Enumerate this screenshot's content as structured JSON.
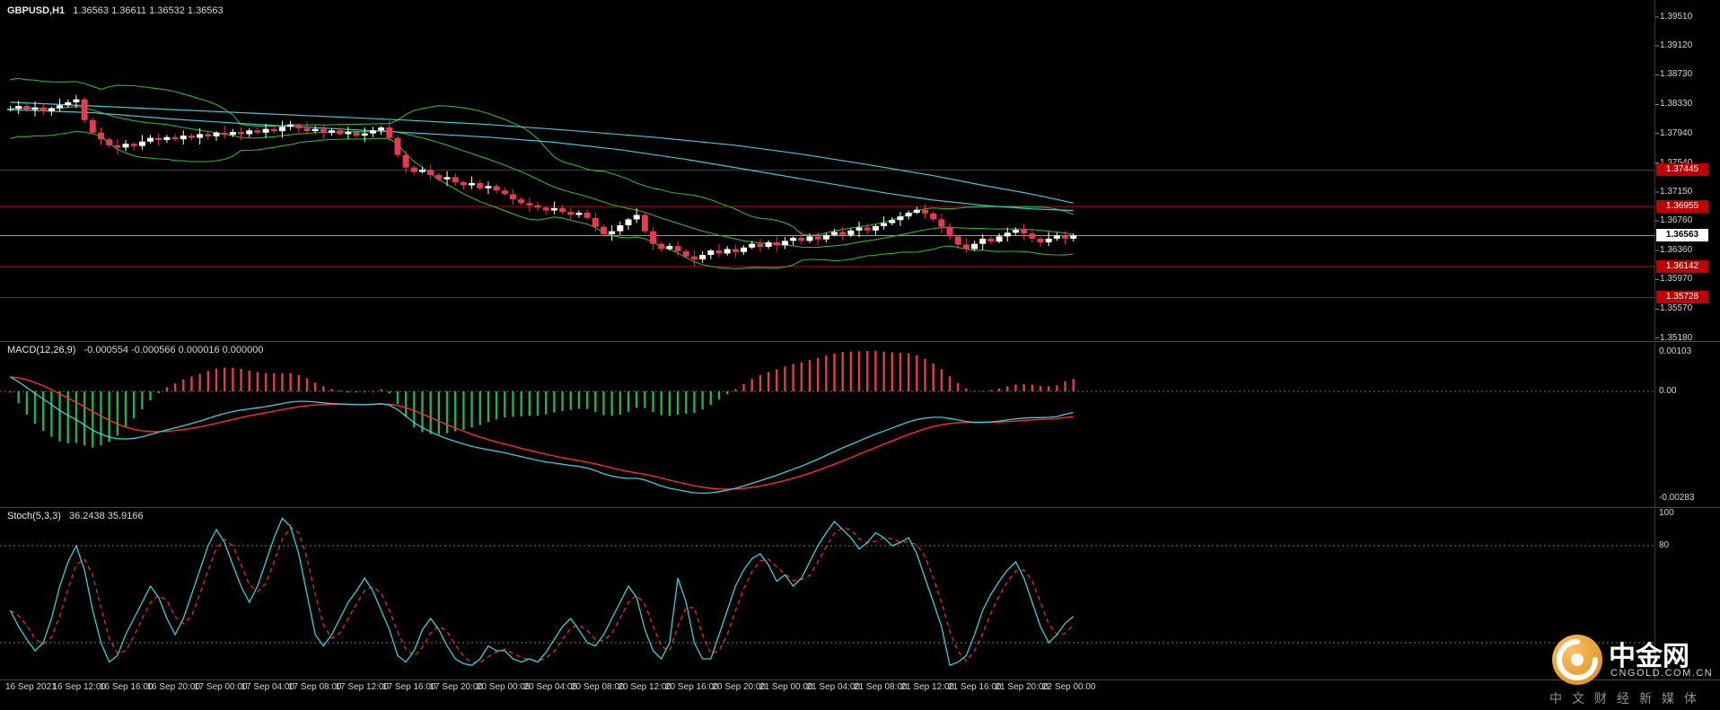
{
  "chart_data": {
    "type": "candlestick+indicators",
    "symbol": "GBPUSD",
    "timeframe": "H1",
    "header": {
      "symbol_period": "GBPUSD,H1",
      "ohlc": "1.36563 1.36611 1.36532 1.36563"
    },
    "price_axis": {
      "max": 1.3951,
      "min": 1.3518,
      "ticks": [
        "1.39510",
        "1.39120",
        "1.38730",
        "1.38330",
        "1.37940",
        "1.37540",
        "1.37150",
        "1.36760",
        "1.36360",
        "1.35970",
        "1.35570",
        "1.35180"
      ]
    },
    "time_axis": [
      "16 Sep 2021",
      "16 Sep 12:00",
      "16 Sep 16:00",
      "16 Sep 20:00",
      "17 Sep 00:00",
      "17 Sep 04:00",
      "17 Sep 08:00",
      "17 Sep 12:00",
      "17 Sep 16:00",
      "17 Sep 20:00",
      "20 Sep 00:05",
      "20 Sep 04:05",
      "20 Sep 08:00",
      "20 Sep 12:00",
      "20 Sep 16:00",
      "20 Sep 20:00",
      "21 Sep 00:00",
      "21 Sep 04:00",
      "21 Sep 08:00",
      "21 Sep 12:00",
      "21 Sep 16:00",
      "21 Sep 20:00",
      "22 Sep 00:00"
    ],
    "hlines": [
      {
        "price": 1.37445,
        "label": "1.37445"
      },
      {
        "price": 1.36955,
        "label": "1.36955"
      },
      {
        "price": 1.36142,
        "label": "1.36142"
      },
      {
        "price": 1.35728,
        "label": "1.35728"
      }
    ],
    "current_price": {
      "price": 1.36563,
      "label": "1.36563"
    },
    "candles": {
      "first_open": 1.38255,
      "closes": [
        1.3827,
        1.3831,
        1.3826,
        1.3829,
        1.3824,
        1.3828,
        1.3832,
        1.3836,
        1.384,
        1.3812,
        1.3795,
        1.3786,
        1.3778,
        1.3775,
        1.378,
        1.3777,
        1.3783,
        1.3788,
        1.3785,
        1.3789,
        1.3786,
        1.3791,
        1.3788,
        1.3793,
        1.379,
        1.3795,
        1.3792,
        1.3796,
        1.3793,
        1.3798,
        1.3795,
        1.38,
        1.3797,
        1.3803,
        1.3806,
        1.3801,
        1.3797,
        1.38,
        1.3795,
        1.3798,
        1.3793,
        1.3796,
        1.3791,
        1.3794,
        1.3798,
        1.3802,
        1.3788,
        1.3765,
        1.3748,
        1.3742,
        1.3745,
        1.3738,
        1.3732,
        1.3735,
        1.3728,
        1.3724,
        1.3727,
        1.372,
        1.3723,
        1.3717,
        1.3712,
        1.3705,
        1.37,
        1.3697,
        1.3694,
        1.369,
        1.3693,
        1.3688,
        1.3684,
        1.3687,
        1.368,
        1.3668,
        1.3658,
        1.3662,
        1.367,
        1.3678,
        1.3684,
        1.3662,
        1.3645,
        1.3638,
        1.3642,
        1.3635,
        1.3628,
        1.3624,
        1.363,
        1.3636,
        1.3632,
        1.3638,
        1.3634,
        1.364,
        1.3645,
        1.3641,
        1.3647,
        1.3643,
        1.3649,
        1.3653,
        1.3649,
        1.3655,
        1.3651,
        1.3657,
        1.3661,
        1.3657,
        1.3663,
        1.3667,
        1.3663,
        1.3669,
        1.3673,
        1.3677,
        1.3682,
        1.3687,
        1.3691,
        1.3686,
        1.3678,
        1.3668,
        1.3655,
        1.3644,
        1.3638,
        1.3645,
        1.3652,
        1.3648,
        1.3655,
        1.366,
        1.3664,
        1.3659,
        1.3652,
        1.3647,
        1.3652,
        1.3656,
        1.3652,
        1.36563
      ]
    },
    "overlays": {
      "bollinger": {
        "period": 20,
        "deviation": 2
      },
      "ma_fast": [
        [
          0,
          1.3826
        ],
        [
          10,
          1.3822
        ],
        [
          20,
          1.3813
        ],
        [
          30,
          1.3806
        ],
        [
          40,
          1.38
        ],
        [
          50,
          1.3794
        ],
        [
          58,
          1.3789
        ],
        [
          66,
          1.3782
        ],
        [
          74,
          1.3772
        ],
        [
          82,
          1.3759
        ],
        [
          90,
          1.3744
        ],
        [
          98,
          1.3729
        ],
        [
          106,
          1.3714
        ],
        [
          112,
          1.3704
        ],
        [
          118,
          1.3697
        ],
        [
          124,
          1.3692
        ],
        [
          129,
          1.369
        ]
      ],
      "ma_slow": [
        [
          0,
          1.3836
        ],
        [
          12,
          1.383
        ],
        [
          24,
          1.3824
        ],
        [
          36,
          1.3818
        ],
        [
          48,
          1.3812
        ],
        [
          58,
          1.3806
        ],
        [
          68,
          1.3798
        ],
        [
          78,
          1.3789
        ],
        [
          88,
          1.3778
        ],
        [
          96,
          1.3766
        ],
        [
          104,
          1.3752
        ],
        [
          112,
          1.3737
        ],
        [
          118,
          1.3724
        ],
        [
          124,
          1.3712
        ],
        [
          129,
          1.37
        ]
      ]
    },
    "macd": {
      "name": "MACD(12,26,9)",
      "values_text": "-0.000554 -0.000566 0.000016 0.000000",
      "axis_labels": {
        "top": "0.00103",
        "zero": "0.00",
        "bottom": "-0.00283"
      },
      "line_1e5": [
        38,
        25,
        10,
        -5,
        -20,
        -35,
        -50,
        -63,
        -74,
        -88,
        -102,
        -112,
        -120,
        -124,
        -125,
        -123,
        -119,
        -113,
        -107,
        -101,
        -96,
        -90,
        -84,
        -78,
        -71,
        -64,
        -58,
        -53,
        -49,
        -46,
        -43,
        -40,
        -36,
        -32,
        -28,
        -26,
        -26,
        -28,
        -30,
        -32,
        -33,
        -34,
        -35,
        -35,
        -34,
        -32,
        -36,
        -48,
        -65,
        -82,
        -95,
        -106,
        -116,
        -124,
        -131,
        -138,
        -144,
        -149,
        -153,
        -157,
        -161,
        -166,
        -171,
        -176,
        -181,
        -185,
        -188,
        -191,
        -194,
        -197,
        -201,
        -208,
        -216,
        -222,
        -226,
        -228,
        -228,
        -232,
        -240,
        -248,
        -254,
        -258,
        -262,
        -266,
        -267,
        -266,
        -263,
        -259,
        -254,
        -248,
        -241,
        -234,
        -227,
        -220,
        -212,
        -204,
        -196,
        -187,
        -178,
        -168,
        -158,
        -148,
        -139,
        -130,
        -121,
        -112,
        -104,
        -96,
        -88,
        -80,
        -74,
        -70,
        -68,
        -68,
        -71,
        -75,
        -79,
        -81,
        -81,
        -80,
        -78,
        -75,
        -72,
        -70,
        -69,
        -69,
        -68,
        -66,
        -60,
        -55.4
      ]
    },
    "stoch": {
      "name": "Stoch(5,3,3)",
      "values_text": "36.2438 35.9166",
      "axis_labels": {
        "top": "100",
        "upper": "80"
      },
      "levels": [
        80,
        20
      ],
      "k": [
        40,
        30,
        22,
        15,
        20,
        35,
        55,
        70,
        80,
        65,
        40,
        20,
        8,
        12,
        25,
        35,
        45,
        55,
        48,
        35,
        25,
        35,
        50,
        65,
        80,
        90,
        82,
        68,
        55,
        45,
        55,
        70,
        85,
        97,
        92,
        75,
        50,
        25,
        18,
        25,
        35,
        45,
        52,
        60,
        52,
        40,
        28,
        12,
        8,
        15,
        28,
        35,
        28,
        18,
        10,
        7,
        6,
        10,
        18,
        15,
        15,
        10,
        8,
        10,
        8,
        14,
        22,
        30,
        35,
        28,
        20,
        18,
        25,
        35,
        45,
        55,
        48,
        28,
        15,
        10,
        20,
        60,
        45,
        20,
        10,
        10,
        25,
        40,
        55,
        65,
        72,
        75,
        68,
        58,
        62,
        55,
        60,
        70,
        80,
        88,
        95,
        90,
        85,
        78,
        82,
        88,
        85,
        80,
        82,
        85,
        75,
        60,
        45,
        30,
        6,
        8,
        12,
        25,
        40,
        50,
        58,
        65,
        70,
        60,
        45,
        30,
        20,
        25,
        32,
        36.2
      ]
    },
    "colors": {
      "bull": "#ffffff",
      "bear": "#e8394e",
      "band": "#2db32d",
      "ma": "#41c7d6",
      "macd_line": "#35d0dd",
      "signal": "#ff2b2b",
      "hist_pos": "#e8384f",
      "hist_neg": "#22b14c",
      "hline": "#d40000",
      "bid_line": "#9b9b9b",
      "axis_text": "#d4d4d4"
    }
  },
  "watermark": {
    "brand": "中金网",
    "domain": "CNGOLD.COM.CN",
    "tagline": "中文财经新媒体"
  }
}
